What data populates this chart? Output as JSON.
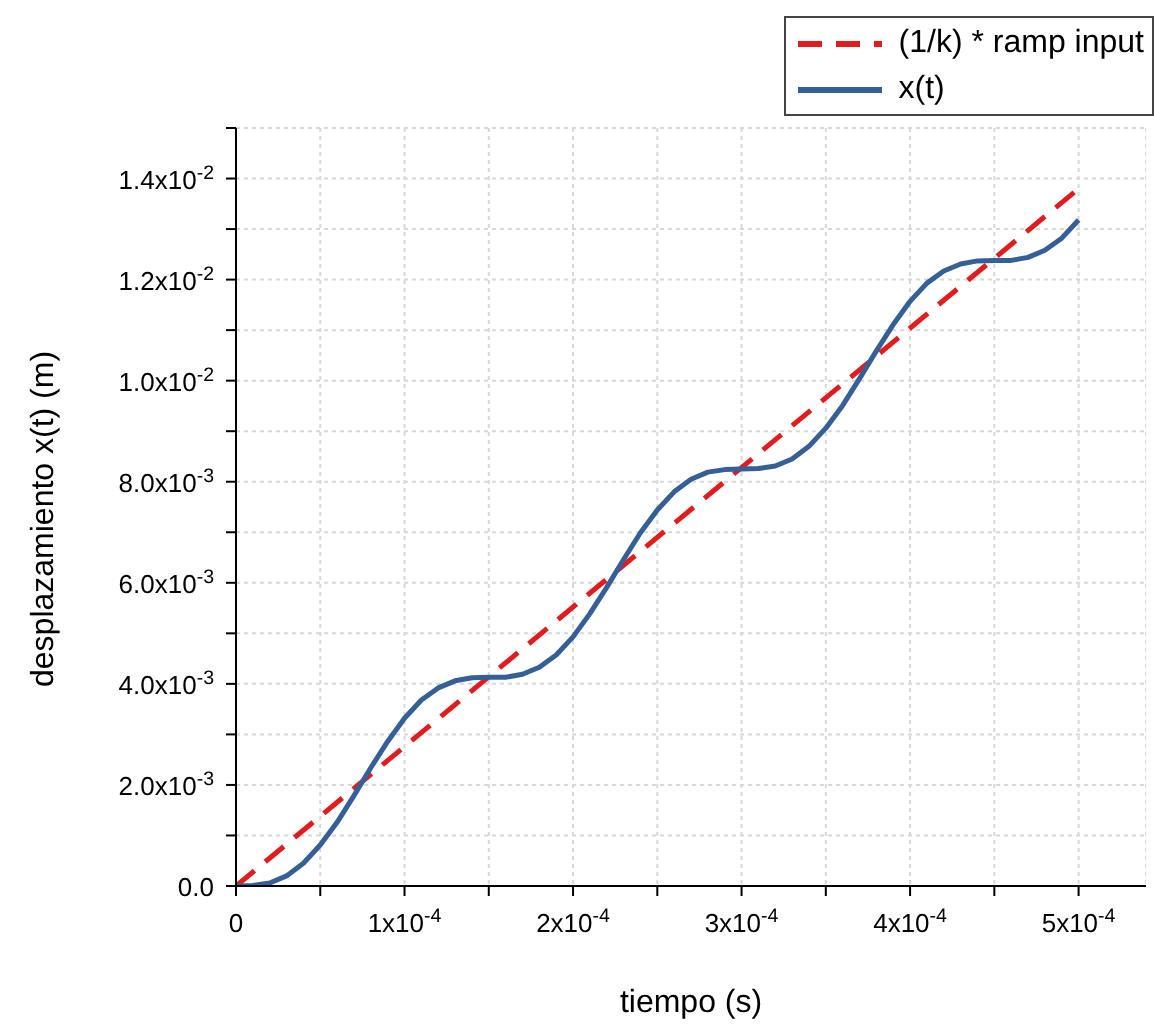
{
  "chart_data": {
    "type": "line",
    "xlabel": "tiempo (s)",
    "ylabel": "desplazamiento x(t) (m)",
    "xlim": [
      0,
      0.00054
    ],
    "ylim": [
      0,
      0.015
    ],
    "xticks": [
      {
        "value": 0,
        "label": "0"
      },
      {
        "value": 5e-05,
        "label": null
      },
      {
        "value": 0.0001,
        "label": "1x10$^{-4}$"
      },
      {
        "value": 0.00015,
        "label": null
      },
      {
        "value": 0.0002,
        "label": "2x10$^{-4}$"
      },
      {
        "value": 0.00025,
        "label": null
      },
      {
        "value": 0.0003,
        "label": "3x10$^{-4}$"
      },
      {
        "value": 0.00035,
        "label": null
      },
      {
        "value": 0.0004,
        "label": "4x10$^{-4}$"
      },
      {
        "value": 0.00045,
        "label": null
      },
      {
        "value": 0.0005,
        "label": "5x10$^{-4}$"
      }
    ],
    "yticks": [
      {
        "value": 0,
        "label": "0.0"
      },
      {
        "value": 0.001,
        "label": null
      },
      {
        "value": 0.002,
        "label": "2.0x10$^{-3}$"
      },
      {
        "value": 0.003,
        "label": null
      },
      {
        "value": 0.004,
        "label": "4.0x10$^{-3}$"
      },
      {
        "value": 0.005,
        "label": null
      },
      {
        "value": 0.006,
        "label": "6.0x10$^{-3}$"
      },
      {
        "value": 0.007,
        "label": null
      },
      {
        "value": 0.008,
        "label": "8.0x10$^{-3}$"
      },
      {
        "value": 0.009,
        "label": null
      },
      {
        "value": 0.01,
        "label": "1.0x10$^{-2}$"
      },
      {
        "value": 0.011,
        "label": null
      },
      {
        "value": 0.012,
        "label": "1.2x10$^{-2}$"
      },
      {
        "value": 0.013,
        "label": null
      },
      {
        "value": 0.014,
        "label": "1.4x10$^{-2}$"
      },
      {
        "value": 0.015,
        "label": null
      }
    ],
    "grid": true,
    "legend": "top right",
    "marker": "none",
    "series": [
      {
        "name": "(1/k) * ramp input",
        "color": "#e41a1c",
        "line_style": "dashed",
        "x": [
          0,
          0.0005
        ],
        "values": [
          0,
          0.0138
        ]
      },
      {
        "name": "x(t)",
        "color": "#345f98",
        "line_style": "solid",
        "x": [
          0,
          1e-05,
          2e-05,
          3e-05,
          4e-05,
          5e-05,
          6e-05,
          7e-05,
          8e-05,
          9e-05,
          0.0001,
          0.00011,
          0.00012,
          0.00013,
          0.00014,
          0.00015,
          0.00016,
          0.00017,
          0.00018,
          0.00019,
          0.0002,
          0.00021,
          0.00022,
          0.00023,
          0.00024,
          0.00025,
          0.00026,
          0.00027,
          0.00028,
          0.00029,
          0.0003,
          0.00031,
          0.00032,
          0.00033,
          0.00034,
          0.00035,
          0.00036,
          0.00037,
          0.00038,
          0.00039,
          0.0004,
          0.00041,
          0.00042,
          0.00043,
          0.00044,
          0.00045,
          0.00046,
          0.00047,
          0.00048,
          0.00049,
          0.0005
        ],
        "values": [
          0,
          1e-05,
          6e-05,
          0.0002,
          0.00045,
          0.00081,
          0.00126,
          0.00179,
          0.00234,
          0.00286,
          0.00332,
          0.00368,
          0.00392,
          0.00406,
          0.00412,
          0.00413,
          0.00413,
          0.00419,
          0.00433,
          0.00457,
          0.00493,
          0.00539,
          0.00591,
          0.00646,
          0.00699,
          0.00744,
          0.0078,
          0.00805,
          0.00819,
          0.00824,
          0.00825,
          0.00826,
          0.00831,
          0.00845,
          0.0087,
          0.00906,
          0.00951,
          0.01004,
          0.01059,
          0.01111,
          0.01157,
          0.01193,
          0.01217,
          0.01231,
          0.01237,
          0.01238,
          0.01238,
          0.01244,
          0.01258,
          0.01282,
          0.01318
        ]
      }
    ]
  }
}
